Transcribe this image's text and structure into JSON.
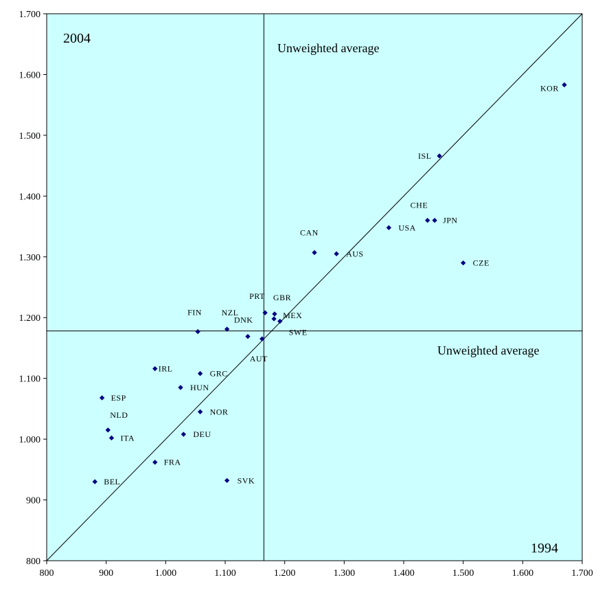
{
  "chart_data": {
    "type": "scatter",
    "xlim": [
      800,
      1700
    ],
    "ylim": [
      800,
      1700
    ],
    "x_ticks": [
      "800",
      "900",
      "1.000",
      "1.100",
      "1.200",
      "1.300",
      "1.400",
      "1.500",
      "1.600",
      "1.700"
    ],
    "y_ticks": [
      "800",
      "900",
      "1.000",
      "1.100",
      "1.200",
      "1.300",
      "1.400",
      "1.500",
      "1.600",
      "1.700"
    ],
    "x_tick_values": [
      800,
      900,
      1000,
      1100,
      1200,
      1300,
      1400,
      1500,
      1600,
      1700
    ],
    "y_tick_values": [
      800,
      900,
      1000,
      1100,
      1200,
      1300,
      1400,
      1500,
      1600,
      1700
    ],
    "corner_top_left": "2004",
    "corner_bottom_right": "1994",
    "avg_x": 1165,
    "avg_y": 1178,
    "avg_x_label": "Unweighted average",
    "avg_y_label": "Unweighted average",
    "diagonal": true,
    "grid": false,
    "point_color": "#000080",
    "plot_background": "#ccffff",
    "points": [
      {
        "label": "KOR",
        "x": 1670,
        "y": 1583
      },
      {
        "label": "ISL",
        "x": 1460,
        "y": 1466
      },
      {
        "label": "CHE",
        "x": 1440,
        "y": 1360
      },
      {
        "label": "JPN",
        "x": 1452,
        "y": 1360
      },
      {
        "label": "USA",
        "x": 1375,
        "y": 1348
      },
      {
        "label": "CAN",
        "x": 1250,
        "y": 1307
      },
      {
        "label": "AUS",
        "x": 1287,
        "y": 1305
      },
      {
        "label": "CZE",
        "x": 1500,
        "y": 1290
      },
      {
        "label": "PRT",
        "x": 1167,
        "y": 1208
      },
      {
        "label": "GBR",
        "x": 1183,
        "y": 1206
      },
      {
        "label": "MEX",
        "x": 1182,
        "y": 1198
      },
      {
        "label": "SWE",
        "x": 1192,
        "y": 1194
      },
      {
        "label": "FIN",
        "x": 1054,
        "y": 1177
      },
      {
        "label": "NZL",
        "x": 1103,
        "y": 1181
      },
      {
        "label": "DNK",
        "x": 1138,
        "y": 1169
      },
      {
        "label": "AUT",
        "x": 1162,
        "y": 1165
      },
      {
        "label": "IRL",
        "x": 982,
        "y": 1116
      },
      {
        "label": "GRC",
        "x": 1058,
        "y": 1108
      },
      {
        "label": "HUN",
        "x": 1025,
        "y": 1085
      },
      {
        "label": "ESP",
        "x": 893,
        "y": 1068
      },
      {
        "label": "NOR",
        "x": 1058,
        "y": 1045
      },
      {
        "label": "NLD",
        "x": 903,
        "y": 1015
      },
      {
        "label": "ITA",
        "x": 909,
        "y": 1002
      },
      {
        "label": "DEU",
        "x": 1030,
        "y": 1008
      },
      {
        "label": "FRA",
        "x": 982,
        "y": 962
      },
      {
        "label": "SVK",
        "x": 1103,
        "y": 932
      },
      {
        "label": "BEL",
        "x": 881,
        "y": 930
      }
    ]
  }
}
